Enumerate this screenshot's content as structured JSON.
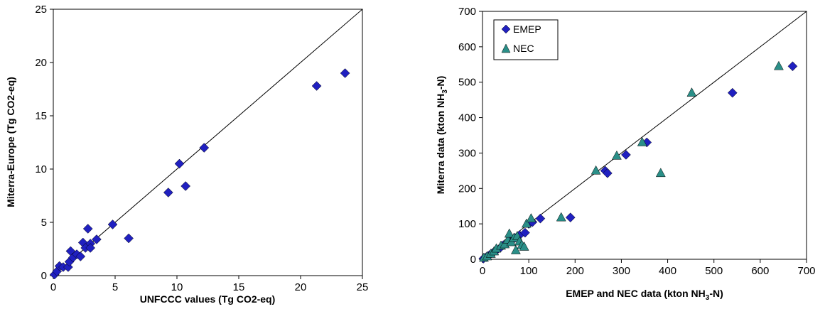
{
  "chart_data": [
    {
      "type": "scatter",
      "title": "",
      "xlabel": "UNFCCC values (Tg CO2-eq)",
      "ylabel": "Miterra-Europe (Tg CO2-eq)",
      "xlim": [
        0,
        25
      ],
      "ylim": [
        0,
        25
      ],
      "x_ticks": [
        "0",
        "5",
        "10",
        "15",
        "20",
        "25"
      ],
      "y_ticks": [
        "0",
        "5",
        "10",
        "15",
        "20",
        "25"
      ],
      "grid": false,
      "legend": "none",
      "reference_line": "1:1",
      "series": [
        {
          "marker": "diamond",
          "color": "#2020c0",
          "points": [
            [
              0.1,
              0.1
            ],
            [
              0.3,
              0.4
            ],
            [
              0.5,
              0.9
            ],
            [
              0.8,
              0.8
            ],
            [
              1.2,
              0.8
            ],
            [
              1.3,
              1.3
            ],
            [
              1.4,
              2.3
            ],
            [
              1.6,
              1.7
            ],
            [
              1.9,
              2.0
            ],
            [
              2.2,
              1.8
            ],
            [
              2.4,
              3.1
            ],
            [
              2.6,
              2.6
            ],
            [
              2.8,
              4.4
            ],
            [
              3.0,
              3.0
            ],
            [
              3.0,
              2.6
            ],
            [
              3.5,
              3.4
            ],
            [
              4.8,
              4.8
            ],
            [
              6.1,
              3.5
            ],
            [
              9.3,
              7.8
            ],
            [
              10.2,
              10.5
            ],
            [
              10.7,
              8.4
            ],
            [
              12.2,
              12.0
            ],
            [
              21.3,
              17.8
            ],
            [
              23.6,
              19.0
            ]
          ]
        }
      ]
    },
    {
      "type": "scatter",
      "title": "",
      "xlabel": "EMEP and NEC data (kton NH3-N)",
      "ylabel": "Miterra data (kton NH3-N)",
      "xlim": [
        0,
        700
      ],
      "ylim": [
        0,
        700
      ],
      "x_ticks": [
        "0",
        "100",
        "200",
        "300",
        "400",
        "500",
        "600",
        "700"
      ],
      "y_ticks": [
        "0",
        "100",
        "200",
        "300",
        "400",
        "500",
        "600",
        "700"
      ],
      "grid": false,
      "legend": "top-left",
      "reference_line": "1:1",
      "series": [
        {
          "name": "EMEP",
          "marker": "diamond",
          "color": "#2020c0",
          "points": [
            [
              2,
              2
            ],
            [
              8,
              6
            ],
            [
              15,
              12
            ],
            [
              22,
              18
            ],
            [
              30,
              25
            ],
            [
              38,
              32
            ],
            [
              45,
              40
            ],
            [
              55,
              48
            ],
            [
              62,
              55
            ],
            [
              70,
              60
            ],
            [
              80,
              68
            ],
            [
              92,
              75
            ],
            [
              100,
              100
            ],
            [
              108,
              105
            ],
            [
              125,
              115
            ],
            [
              190,
              118
            ],
            [
              265,
              250
            ],
            [
              270,
              243
            ],
            [
              310,
              295
            ],
            [
              355,
              330
            ],
            [
              540,
              470
            ],
            [
              670,
              545
            ]
          ]
        },
        {
          "name": "NEC",
          "marker": "triangle",
          "color": "#2a8f88",
          "points": [
            [
              3,
              4
            ],
            [
              10,
              8
            ],
            [
              18,
              15
            ],
            [
              25,
              22
            ],
            [
              30,
              30
            ],
            [
              40,
              38
            ],
            [
              48,
              42
            ],
            [
              55,
              55
            ],
            [
              58,
              72
            ],
            [
              62,
              48
            ],
            [
              68,
              60
            ],
            [
              72,
              25
            ],
            [
              75,
              65
            ],
            [
              80,
              50
            ],
            [
              85,
              40
            ],
            [
              90,
              35
            ],
            [
              95,
              100
            ],
            [
              105,
              115
            ],
            [
              170,
              118
            ],
            [
              245,
              250
            ],
            [
              290,
              292
            ],
            [
              345,
              330
            ],
            [
              385,
              243
            ],
            [
              452,
              470
            ],
            [
              640,
              545
            ]
          ]
        }
      ]
    }
  ]
}
